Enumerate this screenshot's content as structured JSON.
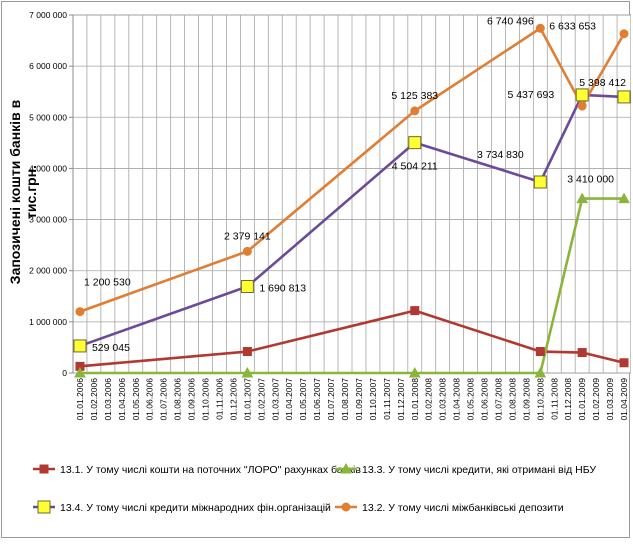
{
  "chart_data": {
    "type": "line",
    "ylabel": "Запозичені кошти банків  в тис.грн.",
    "xlabel": "",
    "ylim": [
      0,
      7000000
    ],
    "y_ticks": [
      0,
      1000000,
      2000000,
      3000000,
      4000000,
      5000000,
      6000000,
      7000000
    ],
    "y_tick_labels": [
      "0",
      "1 000 000",
      "2 000 000",
      "3 000 000",
      "4 000 000",
      "5 000 000",
      "6 000 000",
      "7 000 000"
    ],
    "categories": [
      "01.01.2006",
      "01.02.2006",
      "01.03.2006",
      "01.04.2006",
      "01.05.2006",
      "01.06.2006",
      "01.07.2006",
      "01.08.2006",
      "01.09.2006",
      "01.10.2006",
      "01.11.2006",
      "01.12.2006",
      "01.01.2007",
      "01.02.2007",
      "01.03.2007",
      "01.04.2007",
      "01.05.2007",
      "01.06.2007",
      "01.07.2007",
      "01.08.2007",
      "01.09.2007",
      "01.10.2007",
      "01.11.2007",
      "01.12.2007",
      "01.01.2008",
      "01.02.2008",
      "01.03.2008",
      "01.04.2008",
      "01.05.2008",
      "01.06.2008",
      "01.07.2008",
      "01.08.2008",
      "01.09.2008",
      "01.10.2008",
      "01.11.2008",
      "01.12.2008",
      "01.01.2009",
      "01.02.2009",
      "01.03.2009",
      "01.04.2009"
    ],
    "series": [
      {
        "name": "13.1. У тому числі кошти на поточних \"ЛОРО\" рахунках банків",
        "color": "#b03a32",
        "marker": "square",
        "points": [
          {
            "x": "01.01.2006",
            "y": 130000
          },
          {
            "x": "01.01.2007",
            "y": 420000
          },
          {
            "x": "01.01.2008",
            "y": 1220000
          },
          {
            "x": "01.10.2008",
            "y": 420000
          },
          {
            "x": "01.01.2009",
            "y": 400000
          },
          {
            "x": "01.04.2009",
            "y": 200000
          }
        ]
      },
      {
        "name": "13.3. У тому числі кредити, які отримані від НБУ",
        "color": "#8ab43a",
        "marker": "triangle",
        "points": [
          {
            "x": "01.01.2006",
            "y": 0
          },
          {
            "x": "01.01.2007",
            "y": 0
          },
          {
            "x": "01.01.2008",
            "y": 0
          },
          {
            "x": "01.10.2008",
            "y": 0
          },
          {
            "x": "01.01.2009",
            "y": 3410000
          },
          {
            "x": "01.04.2009",
            "y": 3410000,
            "label": "3 410 000"
          }
        ]
      },
      {
        "name": "13.4. У тому числі кредити міжнародних фін.організацій",
        "color": "#6a4b9a",
        "marker": "yellow-square",
        "points": [
          {
            "x": "01.01.2006",
            "y": 529045,
            "label": "529 045"
          },
          {
            "x": "01.01.2007",
            "y": 1690813,
            "label": "1 690 813"
          },
          {
            "x": "01.01.2008",
            "y": 4504211,
            "label": "4 504 211"
          },
          {
            "x": "01.10.2008",
            "y": 3734830,
            "label": "3 734 830"
          },
          {
            "x": "01.01.2009",
            "y": 5437693,
            "label": "5 437 693"
          },
          {
            "x": "01.04.2009",
            "y": 5398412,
            "label": "5 398 412"
          }
        ]
      },
      {
        "name": "13.2. У тому числі міжбанківські депозити",
        "color": "#e07e33",
        "marker": "circle",
        "points": [
          {
            "x": "01.01.2006",
            "y": 1200530,
            "label": "1 200 530"
          },
          {
            "x": "01.01.2007",
            "y": 2379141,
            "label": "2 379 141"
          },
          {
            "x": "01.01.2008",
            "y": 5125383,
            "label": "5 125 383"
          },
          {
            "x": "01.10.2008",
            "y": 6740496,
            "label": "6 740 496"
          },
          {
            "x": "01.01.2009",
            "y": 5220000
          },
          {
            "x": "01.04.2009",
            "y": 6633653,
            "label": "6 633 653"
          }
        ]
      }
    ],
    "legend_order": [
      0,
      1,
      2,
      3
    ],
    "legend_position": "bottom",
    "grid": {
      "horizontal": true,
      "vertical": true
    }
  }
}
